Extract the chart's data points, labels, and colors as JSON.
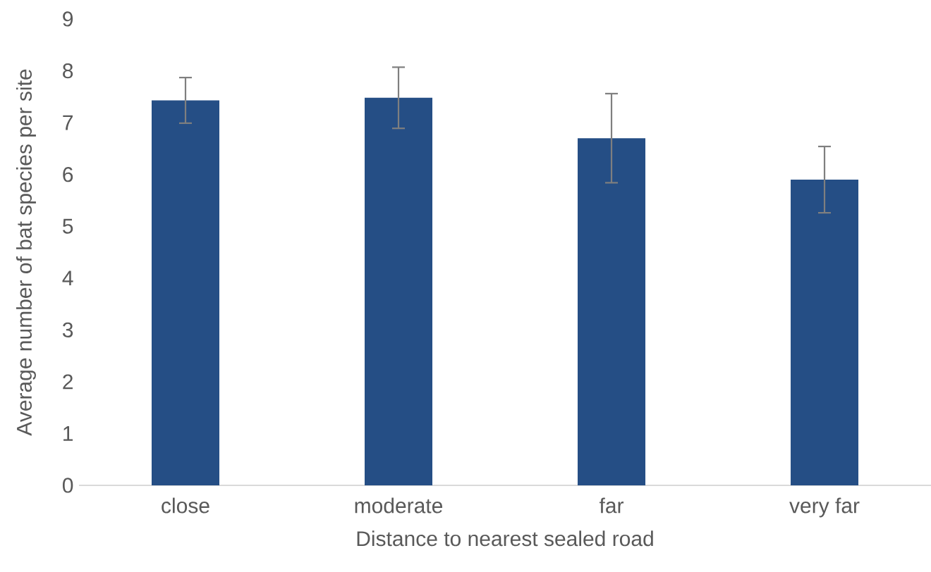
{
  "chart_data": {
    "type": "bar",
    "xlabel": "Distance to nearest sealed road",
    "ylabel": "Average number of bat species per site",
    "categories": [
      "close",
      "moderate",
      "far",
      "very far"
    ],
    "values": [
      7.43,
      7.48,
      6.7,
      5.9
    ],
    "errors": [
      0.44,
      0.59,
      0.86,
      0.64
    ],
    "color": "#254e85",
    "ylim": [
      0,
      9
    ],
    "yticks": [
      0,
      1,
      2,
      3,
      4,
      5,
      6,
      7,
      8,
      9
    ]
  }
}
